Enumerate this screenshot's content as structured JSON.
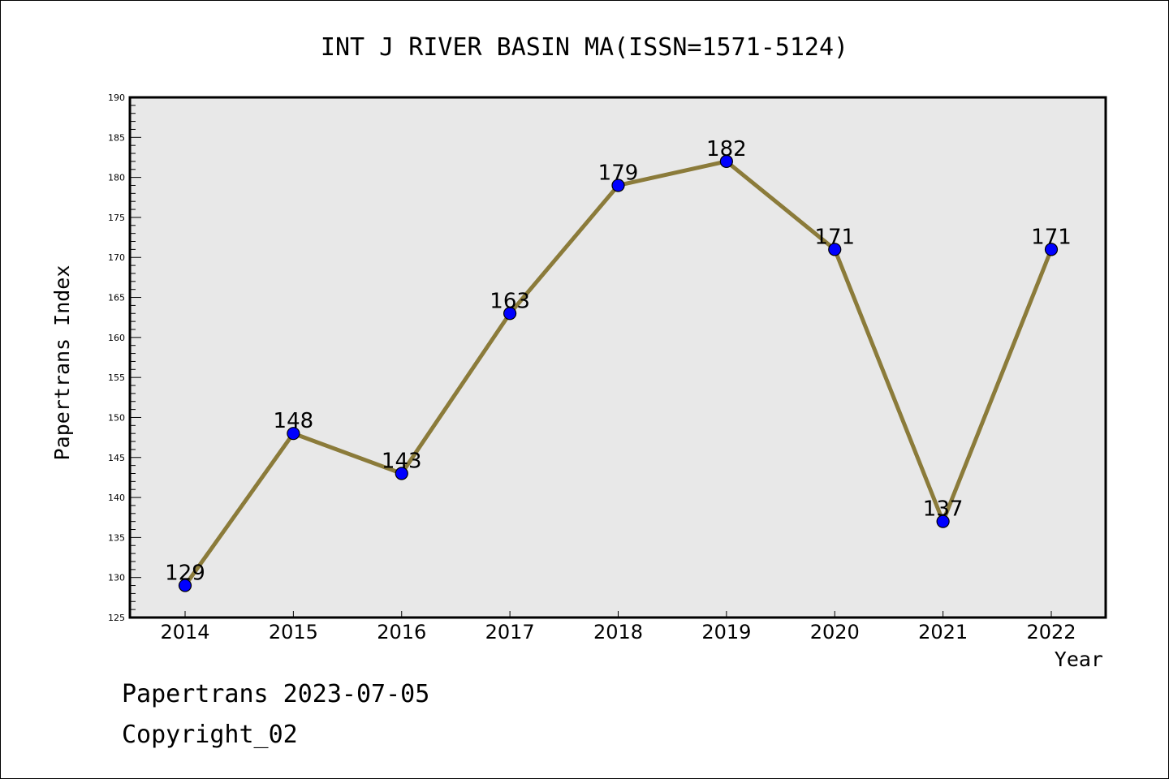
{
  "chart_data": {
    "type": "line",
    "title": "INT J RIVER BASIN MA(ISSN=1571-5124)",
    "xlabel": "Year",
    "ylabel": "Papertrans Index",
    "categories": [
      "2014",
      "2015",
      "2016",
      "2017",
      "2018",
      "2019",
      "2020",
      "2021",
      "2022"
    ],
    "series": [
      {
        "values": [
          129,
          148,
          143,
          163,
          179,
          182,
          171,
          137,
          171
        ]
      }
    ],
    "ylim": [
      125,
      190
    ],
    "y_major_step": 5,
    "y_minor_step": 1,
    "grid": false,
    "line_color": "#8b7b3a",
    "marker_color": "#0000ff",
    "plot_background": "#e8e8e8"
  },
  "footer": {
    "line1": "Papertrans 2023-07-05",
    "line2": "Copyright_02"
  }
}
